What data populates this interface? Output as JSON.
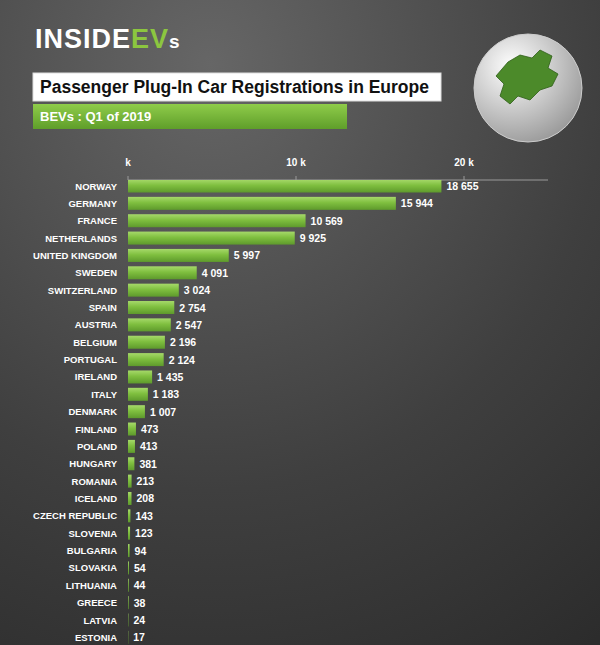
{
  "chart_data": {
    "type": "bar",
    "orientation": "horizontal",
    "logo": [
      "INSIDE",
      "EV",
      "s"
    ],
    "title": "Passenger Plug-In Car Registrations in Europe",
    "subtitle": "BEVs : Q1 of 2019",
    "categories": [
      "NORWAY",
      "GERMANY",
      "FRANCE",
      "NETHERLANDS",
      "UNITED KINGDOM",
      "SWEDEN",
      "SWITZERLAND",
      "SPAIN",
      "AUSTRIA",
      "BELGIUM",
      "PORTUGAL",
      "IRELAND",
      "ITALY",
      "DENMARK",
      "FINLAND",
      "POLAND",
      "HUNGARY",
      "ROMANIA",
      "ICELAND",
      "CZECH REPUBLIC",
      "SLOVENIA",
      "BULGARIA",
      "SLOVAKIA",
      "LITHUANIA",
      "GREECE",
      "LATVIA",
      "ESTONIA"
    ],
    "values": [
      18655,
      15944,
      10569,
      9925,
      5997,
      4091,
      3024,
      2754,
      2547,
      2196,
      2124,
      1435,
      1183,
      1007,
      473,
      413,
      381,
      213,
      208,
      143,
      123,
      94,
      54,
      44,
      38,
      24,
      17
    ],
    "value_labels": [
      "18 655",
      "15 944",
      "10 569",
      "9 925",
      "5 997",
      "4 091",
      "3 024",
      "2 754",
      "2 547",
      "2 196",
      "2 124",
      "1 435",
      "1 183",
      "1 007",
      "473",
      "413",
      "381",
      "213",
      "208",
      "143",
      "123",
      "94",
      "54",
      "44",
      "38",
      "24",
      "17"
    ],
    "color": "#7fbf3f",
    "data_labels": true,
    "xlim": [
      0,
      25000
    ],
    "xticks": [
      {
        "value": 0,
        "label": "k"
      },
      {
        "value": 10000,
        "label": "10 k"
      },
      {
        "value": 20000,
        "label": "20 k"
      }
    ]
  }
}
